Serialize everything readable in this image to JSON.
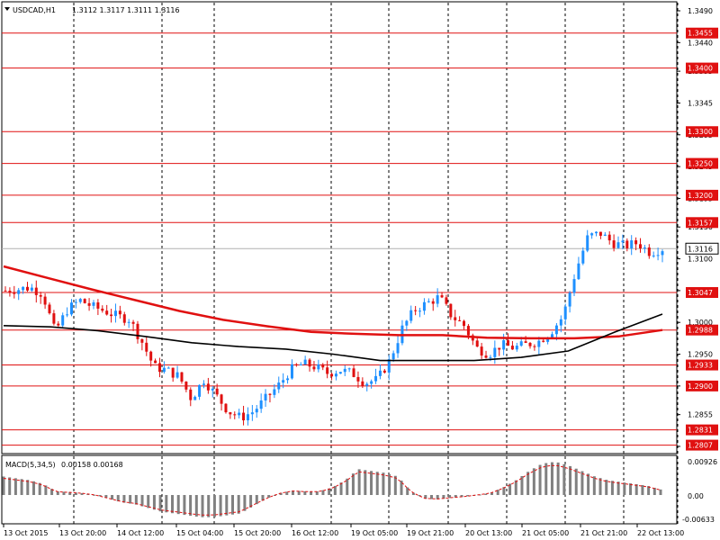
{
  "header": {
    "symbol": "USDCAD,H1",
    "ohlc": "1.3112 1.3117 1.3111 1.3116"
  },
  "macd": {
    "label": "MACD(5,34,5)",
    "values": "0.00158 0.00168",
    "ticks": [
      "0.00926",
      "0.00",
      "-0.00633"
    ]
  },
  "chart_data": {
    "type": "candlestick",
    "price_ylim": [
      1.28,
      1.35
    ],
    "y_ticks": [
      "1.3490",
      "1.3440",
      "1.3395",
      "1.3345",
      "1.3295",
      "1.3245",
      "1.3195",
      "1.3150",
      "1.3100",
      "1.3050",
      "1.3000",
      "1.2950",
      "1.2900",
      "1.2855",
      "1.2805"
    ],
    "x_ticks": [
      "13 Oct 2015",
      "13 Oct 20:00",
      "14 Oct 12:00",
      "15 Oct 04:00",
      "15 Oct 20:00",
      "16 Oct 12:00",
      "19 Oct 05:00",
      "19 Oct 21:00",
      "20 Oct 13:00",
      "21 Oct 05:00",
      "21 Oct 21:00",
      "22 Oct 13:00"
    ],
    "levels": [
      "1.3455",
      "1.3400",
      "1.3300",
      "1.3250",
      "1.3200",
      "1.3157",
      "1.3047",
      "1.2988",
      "1.2933",
      "1.2900",
      "1.2831",
      "1.2807"
    ],
    "current_price": "1.3116",
    "close_anchors": [
      1.305,
      1.3052,
      1.3055,
      1.3045,
      1.2985,
      1.302,
      1.3035,
      1.3025,
      1.3018,
      1.301,
      1.3005,
      1.297,
      1.293,
      1.2925,
      1.2915,
      1.288,
      1.291,
      1.2885,
      1.286,
      1.285,
      1.286,
      1.288,
      1.29,
      1.2925,
      1.2935,
      1.293,
      1.292,
      1.2925,
      1.292,
      1.2905,
      1.291,
      1.294,
      1.299,
      1.302,
      1.303,
      1.304,
      1.301,
      1.2995,
      1.296,
      1.295,
      1.2965,
      1.296,
      1.2965,
      1.297,
      1.2985,
      1.301,
      1.308,
      1.3135,
      1.314,
      1.3125,
      1.312,
      1.3125,
      1.311,
      1.3116
    ],
    "series": [
      {
        "name": "MA",
        "color": "#e01010",
        "values": [
          1.3088,
          1.307,
          1.3052,
          1.3035,
          1.3018,
          1.3004,
          1.2994,
          1.2985,
          1.2982,
          1.298,
          1.298,
          1.2976,
          1.2975,
          1.2975,
          1.2978,
          1.2988
        ]
      },
      {
        "name": "MA",
        "color": "#000000",
        "values": [
          1.2995,
          1.2993,
          1.2987,
          1.2978,
          1.2968,
          1.2962,
          1.2958,
          1.295,
          1.294,
          1.294,
          1.294,
          1.2945,
          1.2955,
          1.2985,
          1.3013
        ]
      }
    ],
    "macd_hist": [
      0.005,
      0.0045,
      0.004,
      0.003,
      0.001,
      0.0008,
      0.0005,
      0.0,
      -0.001,
      -0.002,
      -0.0025,
      -0.0035,
      -0.0045,
      -0.005,
      -0.0055,
      -0.006,
      -0.006,
      -0.0055,
      -0.005,
      -0.003,
      -0.001,
      0.0005,
      0.0012,
      0.001,
      0.001,
      0.002,
      0.004,
      0.007,
      0.0065,
      0.006,
      0.005,
      0.001,
      -0.001,
      -0.0012,
      -0.0008,
      -0.0005,
      0.0,
      0.0005,
      0.002,
      0.004,
      0.0065,
      0.0085,
      0.009,
      0.008,
      0.0065,
      0.005,
      0.004,
      0.0035,
      0.003,
      0.0025,
      0.0015
    ],
    "macd_ylim": [
      -0.00633,
      0.00926
    ]
  },
  "colors": {
    "bull": "#1e90ff",
    "bear": "#e01010",
    "macd_hist": "#808080",
    "macd_signal": "#e01010"
  }
}
